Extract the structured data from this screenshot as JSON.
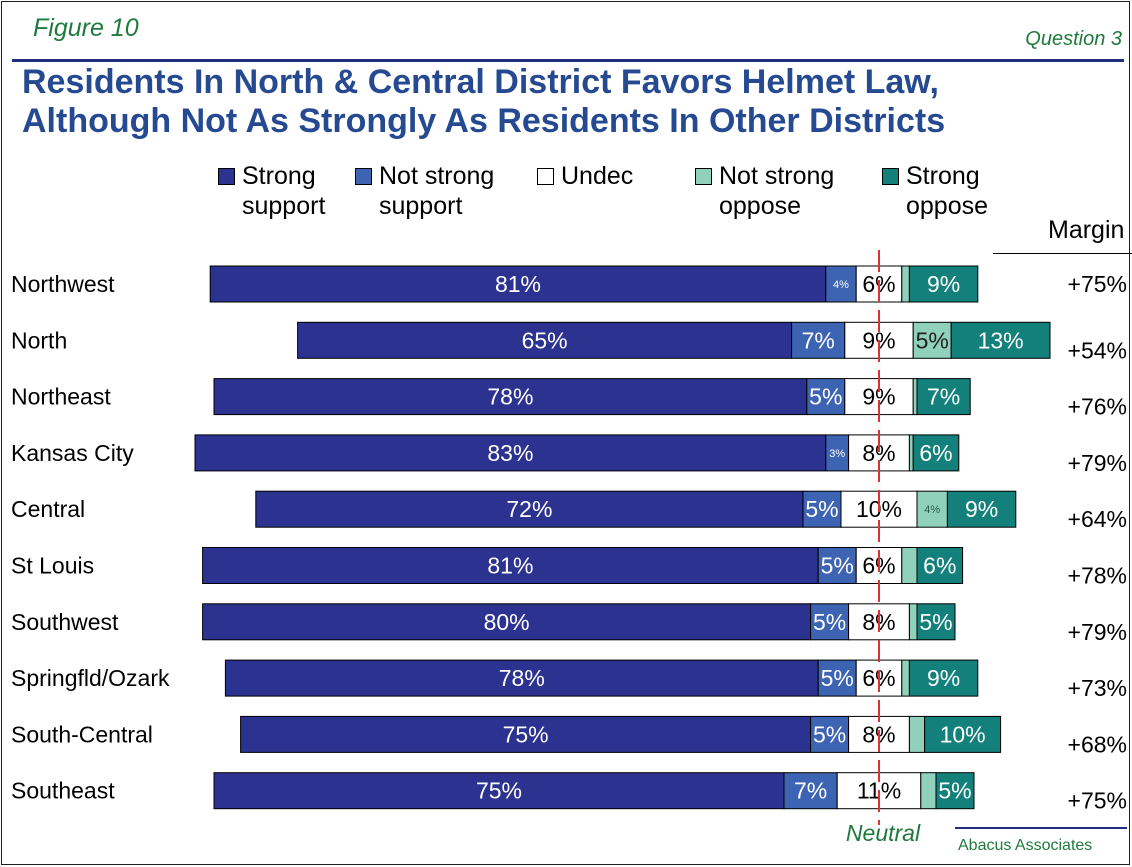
{
  "figure_label": "Figure 10",
  "question_label": "Question 3",
  "footer": "Abacus Associates",
  "chart_data": {
    "type": "bar",
    "orientation": "horizontal-stacked-diverging",
    "title_lines": [
      "Residents In North & Central District Favors Helmet Law,",
      "Although Not As Strongly As Residents In Other Districts"
    ],
    "legend_position": "top",
    "reference_line_label": "Neutral",
    "margin_header": "Margin",
    "categories": [
      "Northwest",
      "North",
      "Northeast",
      "Kansas City",
      "Central",
      "St Louis",
      "Southwest",
      "Springfld/Ozark",
      "South-Central",
      "Southeast"
    ],
    "series": [
      {
        "name": "Strong support",
        "legend_lines": [
          "Strong",
          "support"
        ],
        "color": "#2b3290",
        "values": [
          81,
          65,
          78,
          83,
          72,
          81,
          80,
          78,
          75,
          75
        ],
        "labels": [
          "81%",
          "65%",
          "78%",
          "83%",
          "72%",
          "81%",
          "80%",
          "78%",
          "75%",
          "75%"
        ]
      },
      {
        "name": "Not strong support",
        "legend_lines": [
          "Not strong",
          "support"
        ],
        "color": "#3d63b3",
        "values": [
          4,
          7,
          5,
          3,
          5,
          5,
          5,
          5,
          5,
          7
        ],
        "labels": [
          "4%",
          "7%",
          "5%",
          "3%",
          "5%",
          "5%",
          "5%",
          "5%",
          "5%",
          "7%"
        ]
      },
      {
        "name": "Undec",
        "legend_lines": [
          "Undec"
        ],
        "color": "#ffffff",
        "values": [
          6,
          9,
          9,
          8,
          10,
          6,
          8,
          6,
          8,
          11
        ],
        "labels": [
          "6%",
          "9%",
          "9%",
          "8%",
          "10%",
          "6%",
          "8%",
          "6%",
          "8%",
          "11%"
        ]
      },
      {
        "name": "Not strong oppose",
        "legend_lines": [
          "Not strong",
          "oppose"
        ],
        "color": "#8fd1bb",
        "values": [
          1,
          5,
          0.5,
          0.5,
          4,
          2,
          1,
          1,
          2,
          2
        ],
        "labels": [
          "",
          "5%",
          "",
          "",
          "4%",
          "",
          "",
          "",
          "",
          ""
        ]
      },
      {
        "name": "Strong oppose",
        "legend_lines": [
          "Strong",
          "oppose"
        ],
        "color": "#13807b",
        "values": [
          9,
          13,
          7,
          6,
          9,
          6,
          5,
          9,
          10,
          5
        ],
        "labels": [
          "9%",
          "13%",
          "7%",
          "6%",
          "9%",
          "6%",
          "5%",
          "9%",
          "10%",
          "5%"
        ]
      }
    ],
    "margins": [
      "+75%",
      "+54%",
      "+76%",
      "+79%",
      "+64%",
      "+78%",
      "+79%",
      "+73%",
      "+68%",
      "+75%"
    ],
    "reference_line_color": "#e03030"
  }
}
